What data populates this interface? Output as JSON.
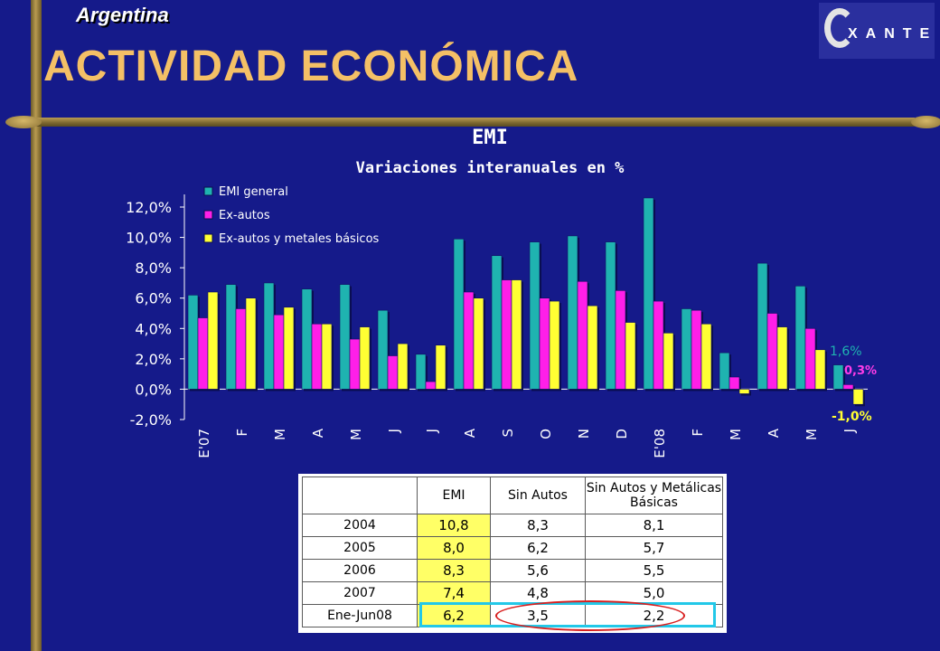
{
  "header": {
    "country": "Argentina",
    "title": "ACTIVIDAD ECONÓMICA",
    "logo_text": "XANTE"
  },
  "colors": {
    "background": "#151a8a",
    "emi_general": "#1fb3b0",
    "ex_autos": "#ff1fe8",
    "ex_autos_metales": "#ffff33",
    "title": "#f4c066"
  },
  "chart_data": {
    "type": "bar",
    "title": "EMI",
    "subtitle": "Variaciones interanuales en %",
    "categories": [
      "E'07",
      "F",
      "M",
      "A",
      "M",
      "J",
      "J",
      "A",
      "S",
      "O",
      "N",
      "D",
      "E'08",
      "F",
      "M",
      "A",
      "M",
      "J"
    ],
    "ylim": [
      -2,
      12
    ],
    "yticks": [
      "-2,0%",
      "0,0%",
      "2,0%",
      "4,0%",
      "6,0%",
      "8,0%",
      "10,0%",
      "12,0%"
    ],
    "grid": false,
    "legend_position": "top-left",
    "series": [
      {
        "name": "EMI general",
        "values": [
          6.2,
          6.9,
          7.0,
          6.6,
          6.9,
          5.2,
          2.3,
          9.9,
          8.8,
          9.7,
          10.1,
          9.7,
          12.6,
          5.3,
          2.4,
          8.3,
          6.8,
          1.6
        ]
      },
      {
        "name": "Ex-autos",
        "values": [
          4.7,
          5.3,
          4.9,
          4.3,
          3.3,
          2.2,
          0.5,
          6.4,
          7.2,
          6.0,
          7.1,
          6.5,
          5.8,
          5.2,
          0.8,
          5.0,
          4.0,
          0.3
        ]
      },
      {
        "name": "Ex-autos y metales básicos",
        "values": [
          6.4,
          6.0,
          5.4,
          4.3,
          4.1,
          3.0,
          2.9,
          6.0,
          7.2,
          5.8,
          5.5,
          4.4,
          3.7,
          4.3,
          -0.3,
          4.1,
          2.6,
          -1.0
        ]
      }
    ],
    "annotations": [
      "1,6%",
      "0,3%",
      "-1,0%"
    ]
  },
  "table": {
    "headers": [
      "",
      "EMI",
      "Sin Autos",
      "Sin Autos y Metálicas Básicas"
    ],
    "rows": [
      {
        "label": "2004",
        "emi": "10,8",
        "sin_autos": "8,3",
        "sin_autos_metalicas": "8,1"
      },
      {
        "label": "2005",
        "emi": "8,0",
        "sin_autos": "6,2",
        "sin_autos_metalicas": "5,7"
      },
      {
        "label": "2006",
        "emi": "8,3",
        "sin_autos": "5,6",
        "sin_autos_metalicas": "5,5"
      },
      {
        "label": "2007",
        "emi": "7,4",
        "sin_autos": "4,8",
        "sin_autos_metalicas": "5,0"
      },
      {
        "label": "Ene-Jun08",
        "emi": "6,2",
        "sin_autos": "3,5",
        "sin_autos_metalicas": "2,2"
      }
    ]
  }
}
